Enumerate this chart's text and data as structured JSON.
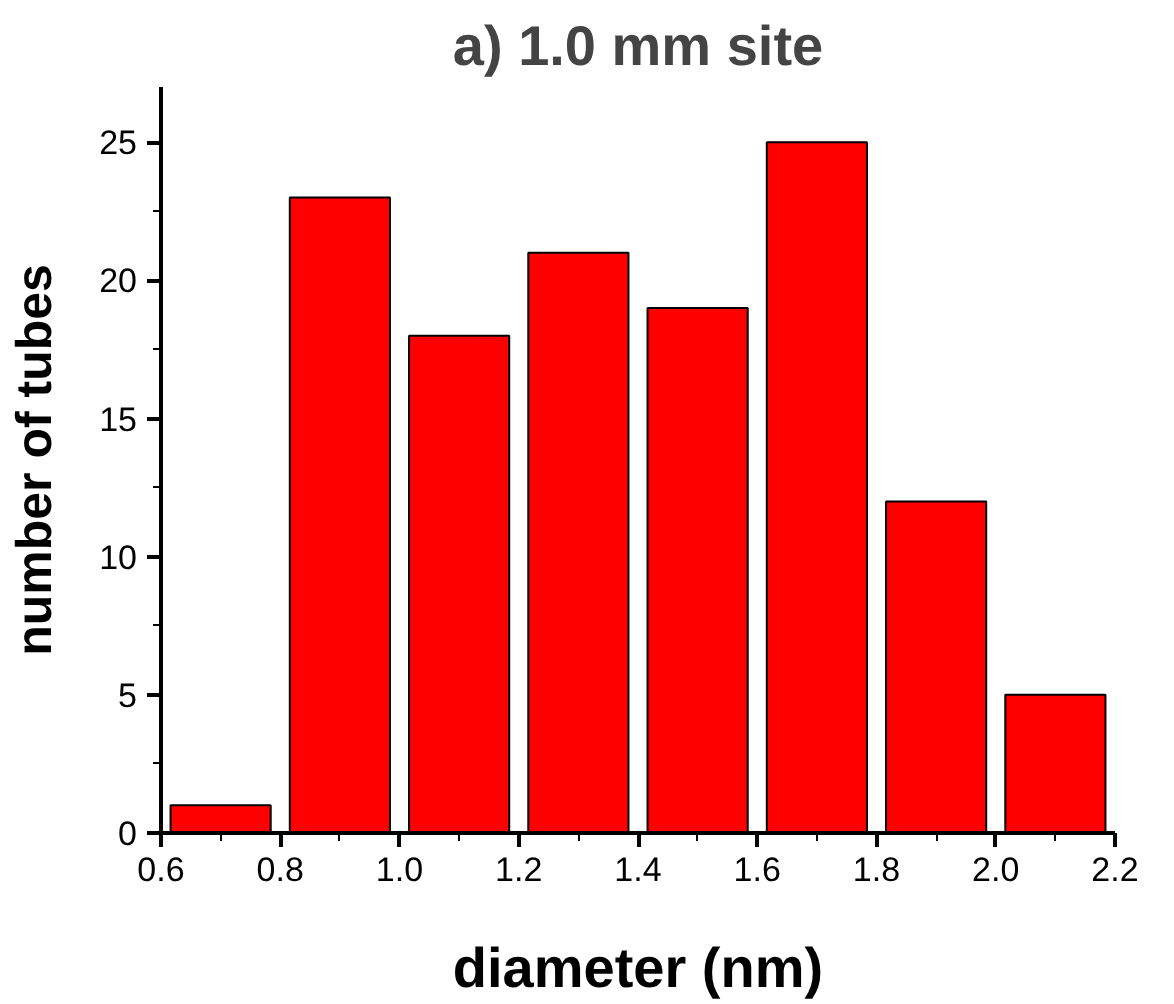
{
  "chart_data": {
    "type": "histogram",
    "title": "a) 1.0 mm site",
    "xlabel": "diameter (nm)",
    "ylabel": "number of tubes",
    "bins": [
      0.6,
      0.8,
      1.0,
      1.2,
      1.4,
      1.6,
      1.8,
      2.0,
      2.2
    ],
    "values": [
      1,
      23,
      18,
      21,
      19,
      25,
      12,
      5
    ],
    "color": "#ff0000",
    "xlim": [
      0.6,
      2.2
    ],
    "xticks": [
      {
        "value": 0.6,
        "label": "0.6"
      },
      {
        "value": 0.8,
        "label": "0.8"
      },
      {
        "value": 1.0,
        "label": "1.0"
      },
      {
        "value": 1.2,
        "label": "1.2"
      },
      {
        "value": 1.4,
        "label": "1.4"
      },
      {
        "value": 1.6,
        "label": "1.6"
      },
      {
        "value": 1.8,
        "label": "1.8"
      },
      {
        "value": 2.0,
        "label": "2.0"
      },
      {
        "value": 2.2,
        "label": "2.2"
      }
    ],
    "ylim": [
      0,
      27
    ],
    "yticks": [
      0,
      5,
      10,
      15,
      20,
      25
    ],
    "grid": false
  }
}
